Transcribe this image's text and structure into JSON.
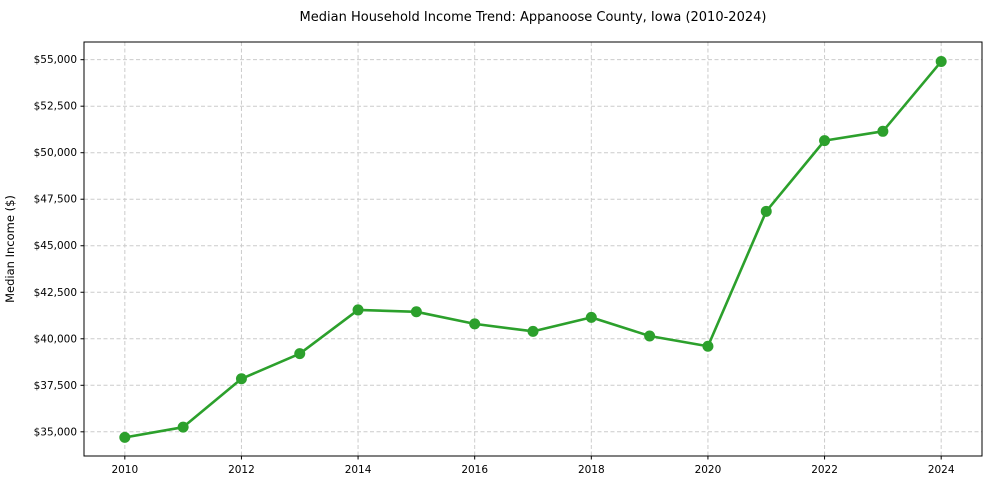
{
  "chart_data": {
    "type": "line",
    "title": "Median Household Income Trend: Appanoose County, Iowa (2010-2024)",
    "xlabel": "",
    "ylabel": "Median Income ($)",
    "x": [
      2010,
      2011,
      2012,
      2013,
      2014,
      2015,
      2016,
      2017,
      2018,
      2019,
      2020,
      2021,
      2022,
      2023,
      2024
    ],
    "series": [
      {
        "name": "Median Household Income",
        "values": [
          34700,
          35250,
          37850,
          39200,
          41550,
          41450,
          40800,
          40400,
          41150,
          40150,
          39600,
          46850,
          50650,
          51150,
          54900
        ]
      }
    ],
    "xlim": [
      2009.3,
      2024.7
    ],
    "ylim": [
      33700,
      55950
    ],
    "xticks": [
      2010,
      2012,
      2014,
      2016,
      2018,
      2020,
      2022,
      2024
    ],
    "yticks": [
      35000,
      37500,
      40000,
      42500,
      45000,
      47500,
      50000,
      52500,
      55000
    ],
    "ytick_prefix": "$",
    "grid": true,
    "legend": "none",
    "colors": {
      "line": "#2ca02c",
      "marker": "#2ca02c",
      "grid": "#cccccc",
      "spine": "#000000",
      "text": "#000000",
      "background": "#ffffff"
    }
  }
}
